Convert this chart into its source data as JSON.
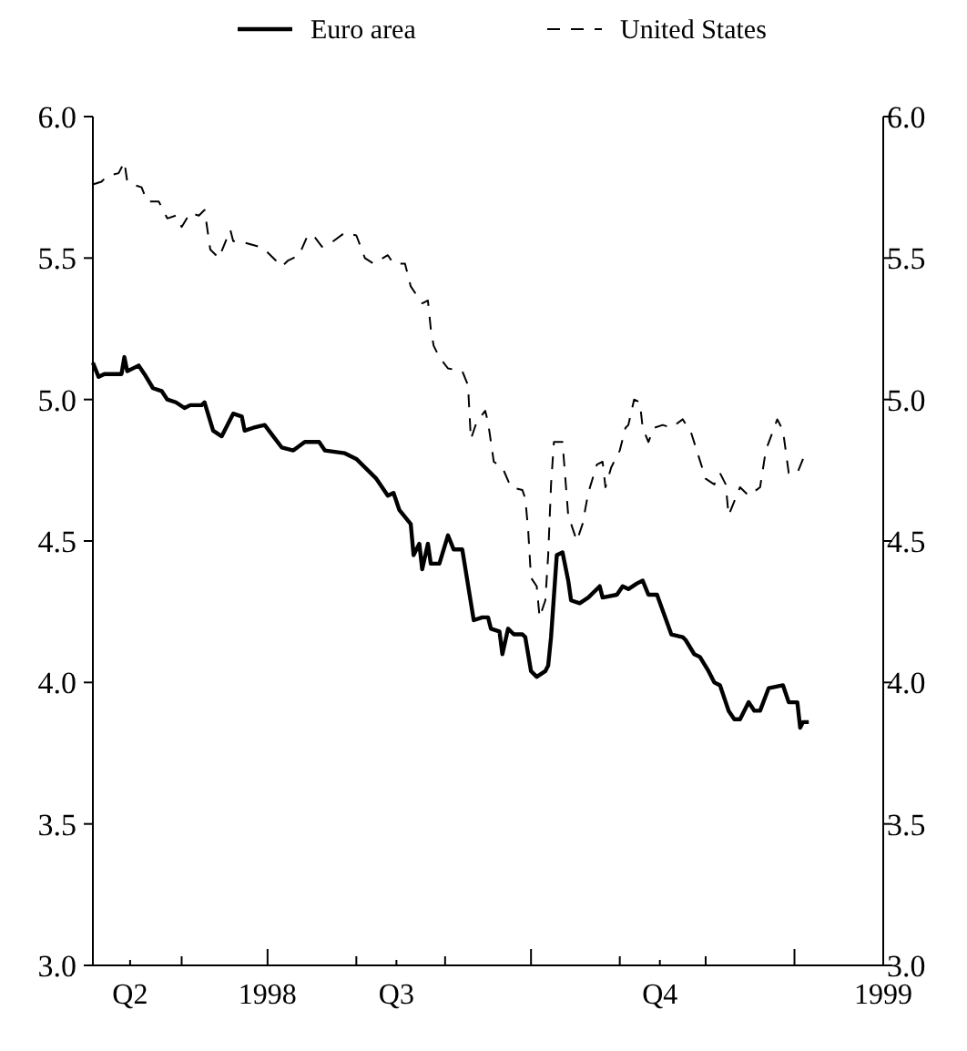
{
  "chart_data": {
    "type": "line",
    "legend": "top",
    "grid": false,
    "xlim": [
      "1998-05-01",
      "1999-02-01"
    ],
    "xticks": [
      {
        "value": "1998-06-01",
        "label": null
      },
      {
        "value": "1998-07-01",
        "label": "1998"
      },
      {
        "value": "1998-08-01",
        "label": null
      },
      {
        "value": "1998-09-01",
        "label": null
      },
      {
        "value": "1998-10-01",
        "label": null
      },
      {
        "value": "1998-11-01",
        "label": null
      },
      {
        "value": "1998-12-01",
        "label": null
      },
      {
        "value": "1999-01-01",
        "label": null
      },
      {
        "value": "1998-05-14",
        "label": "Q2"
      },
      {
        "value": "1998-08-15",
        "label": "Q3"
      },
      {
        "value": "1998-11-15",
        "label": "Q4"
      },
      {
        "value": "1999-02-01",
        "label": "1999"
      }
    ],
    "ylim": [
      3.0,
      6.0
    ],
    "yticks": [
      {
        "value": 3,
        "label": "3.0"
      },
      {
        "value": 3.5,
        "label": "3.5"
      },
      {
        "value": 4,
        "label": "4.0"
      },
      {
        "value": 4.5,
        "label": "4.5"
      },
      {
        "value": 5,
        "label": "5.0"
      },
      {
        "value": 5.5,
        "label": "5.5"
      },
      {
        "value": 6,
        "label": "6.0"
      }
    ],
    "y2lim": [
      3.0,
      6.0
    ],
    "y2ticks": [
      {
        "value": 3,
        "label": "3.0"
      },
      {
        "value": 3.5,
        "label": "3.5"
      },
      {
        "value": 4,
        "label": "4.0"
      },
      {
        "value": 4.5,
        "label": "4.5"
      },
      {
        "value": 5,
        "label": "5.0"
      },
      {
        "value": 5.5,
        "label": "5.5"
      },
      {
        "value": 6,
        "label": "6.0"
      }
    ],
    "series": [
      {
        "name": "Euro area",
        "color": "#000000",
        "line_style": "solid",
        "x": [
          "1998-05-01",
          "1998-05-03",
          "1998-05-05",
          "1998-05-11",
          "1998-05-12",
          "1998-05-13",
          "1998-05-17",
          "1998-05-19",
          "1998-05-22",
          "1998-05-25",
          "1998-05-27",
          "1998-05-30",
          "1998-06-02",
          "1998-06-04",
          "1998-06-08",
          "1998-06-09",
          "1998-06-12",
          "1998-06-15",
          "1998-06-19",
          "1998-06-22",
          "1998-06-23",
          "1998-06-26",
          "1998-06-30",
          "1998-07-03",
          "1998-07-06",
          "1998-07-10",
          "1998-07-14",
          "1998-07-19",
          "1998-07-21",
          "1998-07-28",
          "1998-08-01",
          "1998-08-06",
          "1998-08-08",
          "1998-08-12",
          "1998-08-14",
          "1998-08-16",
          "1998-08-20",
          "1998-08-21",
          "1998-08-23",
          "1998-08-24",
          "1998-08-26",
          "1998-08-27",
          "1998-08-30",
          "1998-09-02",
          "1998-09-04",
          "1998-09-07",
          "1998-09-11",
          "1998-09-14",
          "1998-09-16",
          "1998-09-17",
          "1998-09-20",
          "1998-09-21",
          "1998-09-23",
          "1998-09-25",
          "1998-09-28",
          "1998-09-29",
          "1998-10-01",
          "1998-10-03",
          "1998-10-06",
          "1998-10-07",
          "1998-10-08",
          "1998-10-10",
          "1998-10-12",
          "1998-10-14",
          "1998-10-15",
          "1998-10-18",
          "1998-10-21",
          "1998-10-25",
          "1998-10-26",
          "1998-10-31",
          "1998-11-02",
          "1998-11-04",
          "1998-11-07",
          "1998-11-09",
          "1998-11-11",
          "1998-11-14",
          "1998-11-19",
          "1998-11-23",
          "1998-11-24",
          "1998-11-27",
          "1998-11-29",
          "1998-12-02",
          "1998-12-04",
          "1998-12-06",
          "1998-12-09",
          "1998-12-11",
          "1998-12-13",
          "1998-12-16",
          "1998-12-18",
          "1998-12-20",
          "1998-12-23",
          "1998-12-28",
          "1998-12-30",
          "1999-01-02",
          "1999-01-03",
          "1999-01-04",
          "1999-01-06"
        ],
        "values": [
          5.13,
          5.08,
          5.09,
          5.09,
          5.15,
          5.1,
          5.12,
          5.09,
          5.04,
          5.03,
          5.0,
          4.99,
          4.97,
          4.98,
          4.98,
          4.99,
          4.89,
          4.87,
          4.95,
          4.94,
          4.89,
          4.9,
          4.91,
          4.87,
          4.83,
          4.82,
          4.85,
          4.85,
          4.82,
          4.81,
          4.79,
          4.74,
          4.72,
          4.66,
          4.67,
          4.61,
          4.56,
          4.45,
          4.49,
          4.4,
          4.49,
          4.42,
          4.42,
          4.52,
          4.47,
          4.47,
          4.22,
          4.23,
          4.23,
          4.19,
          4.18,
          4.1,
          4.19,
          4.17,
          4.17,
          4.16,
          4.04,
          4.02,
          4.04,
          4.06,
          4.16,
          4.45,
          4.46,
          4.36,
          4.29,
          4.28,
          4.3,
          4.34,
          4.3,
          4.31,
          4.34,
          4.33,
          4.35,
          4.36,
          4.31,
          4.31,
          4.17,
          4.16,
          4.15,
          4.1,
          4.09,
          4.04,
          4.0,
          3.99,
          3.9,
          3.87,
          3.87,
          3.93,
          3.9,
          3.9,
          3.98,
          3.99,
          3.93,
          3.93,
          3.84,
          3.86,
          3.86
        ]
      },
      {
        "name": "United States",
        "color": "#000000",
        "line_style": "dashed",
        "x": [
          "1998-05-01",
          "1998-05-04",
          "1998-05-06",
          "1998-05-10",
          "1998-05-12",
          "1998-05-13",
          "1998-05-15",
          "1998-05-18",
          "1998-05-20",
          "1998-05-24",
          "1998-05-27",
          "1998-05-30",
          "1998-06-01",
          "1998-06-04",
          "1998-06-07",
          "1998-06-09",
          "1998-06-11",
          "1998-06-14",
          "1998-06-18",
          "1998-06-19",
          "1998-06-21",
          "1998-06-28",
          "1998-06-30",
          "1998-07-06",
          "1998-07-08",
          "1998-07-12",
          "1998-07-15",
          "1998-07-17",
          "1998-07-20",
          "1998-07-24",
          "1998-07-28",
          "1998-08-01",
          "1998-08-04",
          "1998-08-07",
          "1998-08-12",
          "1998-08-14",
          "1998-08-18",
          "1998-08-20",
          "1998-08-24",
          "1998-08-26",
          "1998-08-27",
          "1998-08-28",
          "1998-08-30",
          "1998-09-02",
          "1998-09-07",
          "1998-09-09",
          "1998-09-10",
          "1998-09-12",
          "1998-09-15",
          "1998-09-16",
          "1998-09-18",
          "1998-09-21",
          "1998-09-24",
          "1998-09-28",
          "1998-09-29",
          "1998-09-30",
          "1998-10-01",
          "1998-10-03",
          "1998-10-04",
          "1998-10-06",
          "1998-10-07",
          "1998-10-08",
          "1998-10-09",
          "1998-10-12",
          "1998-10-13",
          "1998-10-14",
          "1998-10-17",
          "1998-10-19",
          "1998-10-21",
          "1998-10-24",
          "1998-10-26",
          "1998-10-27",
          "1998-10-29",
          "1998-11-01",
          "1998-11-03",
          "1998-11-04",
          "1998-11-06",
          "1998-11-08",
          "1998-11-09",
          "1998-11-11",
          "1998-11-13",
          "1998-11-16",
          "1998-11-19",
          "1998-11-23",
          "1998-11-26",
          "1998-12-01",
          "1998-12-04",
          "1998-12-06",
          "1998-12-08",
          "1998-12-09",
          "1998-12-13",
          "1998-12-16",
          "1998-12-20",
          "1998-12-22",
          "1998-12-26",
          "1998-12-28",
          "1998-12-30",
          "1999-01-02",
          "1999-01-04"
        ],
        "values": [
          5.76,
          5.77,
          5.79,
          5.8,
          5.84,
          5.77,
          5.76,
          5.75,
          5.7,
          5.7,
          5.64,
          5.65,
          5.61,
          5.66,
          5.65,
          5.67,
          5.53,
          5.5,
          5.6,
          5.56,
          5.56,
          5.54,
          5.53,
          5.47,
          5.49,
          5.51,
          5.58,
          5.58,
          5.54,
          5.56,
          5.59,
          5.58,
          5.5,
          5.48,
          5.51,
          5.48,
          5.48,
          5.4,
          5.34,
          5.35,
          5.25,
          5.19,
          5.15,
          5.11,
          5.1,
          5.05,
          4.86,
          4.92,
          4.96,
          4.92,
          4.78,
          4.76,
          4.69,
          4.68,
          4.65,
          4.54,
          4.37,
          4.34,
          4.23,
          4.29,
          4.45,
          4.7,
          4.85,
          4.85,
          4.72,
          4.59,
          4.5,
          4.56,
          4.67,
          4.77,
          4.78,
          4.69,
          4.76,
          4.82,
          4.9,
          4.91,
          5.0,
          4.99,
          4.9,
          4.85,
          4.9,
          4.91,
          4.9,
          4.93,
          4.88,
          4.72,
          4.7,
          4.74,
          4.7,
          4.59,
          4.69,
          4.66,
          4.69,
          4.82,
          4.93,
          4.89,
          4.74,
          4.74,
          4.79
        ]
      }
    ]
  }
}
